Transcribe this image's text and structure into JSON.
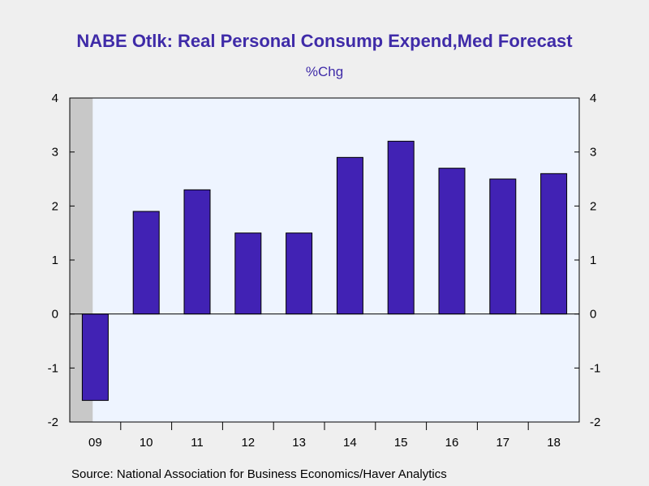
{
  "chart_data": {
    "type": "bar",
    "title": "NABE Otlk: Real Personal Consump Expend,Med Forecast",
    "subtitle": "%Chg",
    "source": "Source:  National Association for Business Economics/Haver Analytics",
    "categories": [
      "09",
      "10",
      "11",
      "12",
      "13",
      "14",
      "15",
      "16",
      "17",
      "18"
    ],
    "values": [
      -1.6,
      1.9,
      2.3,
      1.5,
      1.5,
      2.9,
      3.2,
      2.7,
      2.5,
      2.6
    ],
    "ylim": [
      -2,
      4
    ],
    "yticks": [
      "-2",
      "-1",
      "0",
      "1",
      "2",
      "3",
      "4"
    ],
    "y_axes": "left-and-right",
    "recession_shading": {
      "category": "09",
      "color": "#c8c8c8"
    },
    "colors": {
      "bar": "#4122b4",
      "plot_background": "#eef4ff",
      "title": "#3f2ba8",
      "page_background": "#efefef"
    }
  }
}
